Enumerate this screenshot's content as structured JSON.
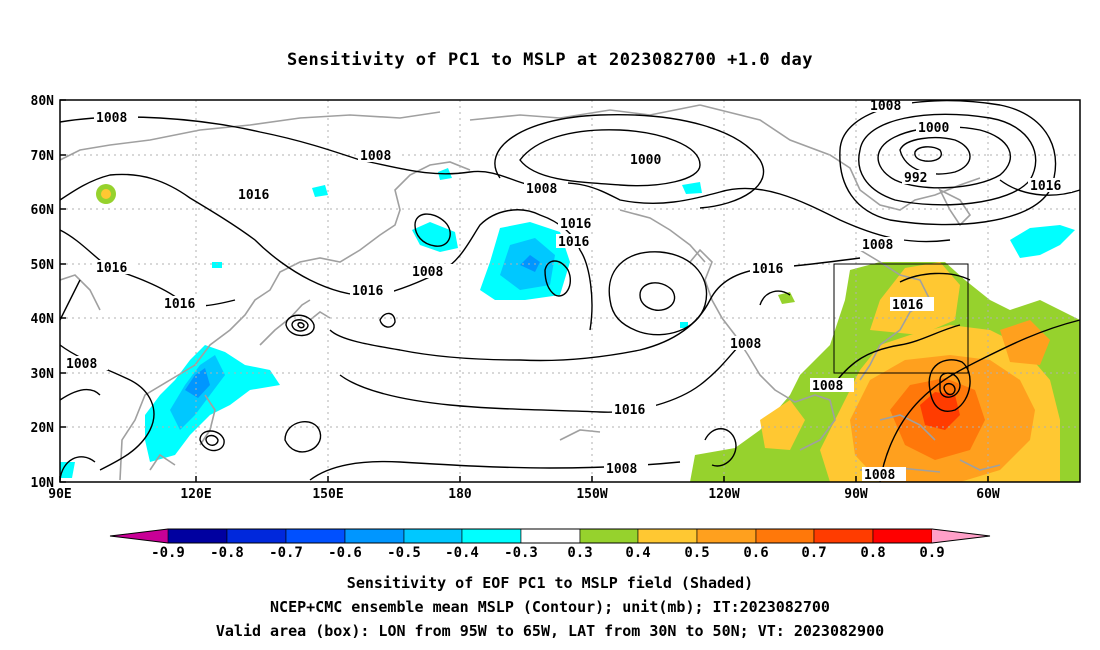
{
  "map": {
    "title": "Sensitivity of PC1 to MSLP at 2023082700 +1.0 day",
    "lat_labels": [
      "80N",
      "70N",
      "60N",
      "50N",
      "40N",
      "30N",
      "20N",
      "10N"
    ],
    "lon_labels": [
      "90E",
      "120E",
      "150E",
      "180",
      "150W",
      "120W",
      "90W",
      "60W"
    ],
    "contour_labels": [
      {
        "text": "1008"
      },
      {
        "text": "1008"
      },
      {
        "text": "1016"
      },
      {
        "text": "1016"
      },
      {
        "text": "1016"
      },
      {
        "text": "1008"
      },
      {
        "text": "1016"
      },
      {
        "text": "1008"
      },
      {
        "text": "1016"
      },
      {
        "text": "1016"
      },
      {
        "text": "1000"
      },
      {
        "text": "1008"
      },
      {
        "text": "1016"
      },
      {
        "text": "1008"
      },
      {
        "text": "1008"
      },
      {
        "text": "1008"
      },
      {
        "text": "1000"
      },
      {
        "text": "992"
      },
      {
        "text": "1016"
      },
      {
        "text": "1008"
      },
      {
        "text": "1016"
      },
      {
        "text": "1008"
      },
      {
        "text": "1008"
      },
      {
        "text": "1016"
      }
    ],
    "valid_area_box": {
      "lon_from": "95W",
      "lon_to": "65W",
      "lat_from": "30N",
      "lat_to": "50N"
    }
  },
  "colorbar": {
    "labels": [
      "-0.9",
      "-0.8",
      "-0.7",
      "-0.6",
      "-0.5",
      "-0.4",
      "-0.3",
      "0.3",
      "0.4",
      "0.5",
      "0.6",
      "0.7",
      "0.8",
      "0.9"
    ],
    "colors": [
      "#c80096",
      "#0000a0",
      "#0028dc",
      "#0050ff",
      "#0096ff",
      "#00c8ff",
      "#00ffff",
      "#ffffff",
      "#96d22d",
      "#ffc832",
      "#ffa01e",
      "#ff780a",
      "#ff3c00",
      "#ff0000",
      "#ffa0c8"
    ]
  },
  "footer": {
    "line1": "Sensitivity of EOF PC1 to MSLP field (Shaded)",
    "line2": "NCEP+CMC ensemble mean MSLP (Contour); unit(mb); IT:2023082700",
    "line3": "Valid area (box): LON from 95W to 65W, LAT from 30N to 50N; VT: 2023082900"
  }
}
